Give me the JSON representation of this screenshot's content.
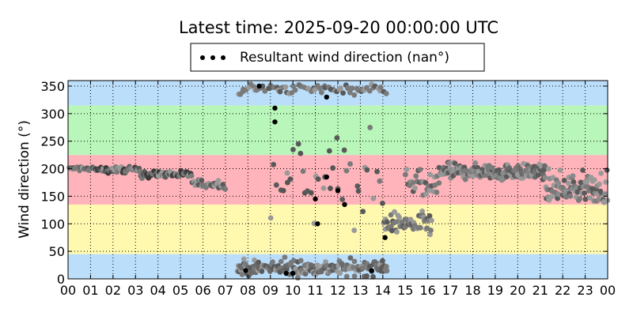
{
  "chart_data": {
    "type": "scatter",
    "title": "Latest time: 2025-09-20 00:00:00 UTC",
    "ylabel": "Wind direction (°)",
    "xlabel": "",
    "xlim": [
      0,
      24
    ],
    "ylim": [
      0,
      360
    ],
    "x_tick_labels": [
      "00",
      "01",
      "02",
      "03",
      "04",
      "05",
      "06",
      "07",
      "08",
      "09",
      "10",
      "11",
      "12",
      "13",
      "14",
      "15",
      "16",
      "17",
      "18",
      "19",
      "20",
      "21",
      "22",
      "23",
      "00"
    ],
    "y_ticks": [
      0,
      50,
      100,
      150,
      200,
      250,
      300,
      350
    ],
    "grid": true,
    "legend": {
      "placement": "top-center",
      "entries": [
        "Resultant wind direction (nan°)"
      ]
    },
    "background_bands": [
      {
        "from": 0,
        "to": 45,
        "color": "#bbdefb"
      },
      {
        "from": 45,
        "to": 135,
        "color": "#fff9b0"
      },
      {
        "from": 135,
        "to": 225,
        "color": "#ffb3ba"
      },
      {
        "from": 225,
        "to": 315,
        "color": "#b9f6b9"
      },
      {
        "from": 315,
        "to": 360,
        "color": "#bbdefb"
      }
    ],
    "series_color": "#808080",
    "point_groups": [
      {
        "x_range": [
          0.0,
          1.2
        ],
        "y_center": 200,
        "y_spread": 6,
        "count": 16,
        "shade": "#5a5a5a"
      },
      {
        "x_range": [
          1.2,
          3.2
        ],
        "y_center": 198,
        "y_spread": 8,
        "count": 55,
        "shade": "#3a3a3a"
      },
      {
        "x_range": [
          3.2,
          5.5
        ],
        "y_center": 190,
        "y_spread": 10,
        "count": 60,
        "shade": "#3a3a3a"
      },
      {
        "x_range": [
          5.5,
          7.0
        ],
        "y_center": 172,
        "y_spread": 12,
        "count": 30,
        "shade": "#6a6a6a"
      },
      {
        "x_range": [
          7.5,
          14.2
        ],
        "y_center": 20,
        "y_spread": 22,
        "count": 170,
        "shade": "#6a6a6a"
      },
      {
        "x_range": [
          7.5,
          14.2
        ],
        "y_center": 345,
        "y_spread": 14,
        "count": 70,
        "shade": "#7a7a7a"
      },
      {
        "x_range": [
          9.0,
          14.0
        ],
        "y_center": 180,
        "y_spread": 110,
        "count": 40,
        "shade": "#555555"
      },
      {
        "x_range": [
          14.0,
          16.2
        ],
        "y_center": 100,
        "y_spread": 30,
        "count": 60,
        "shade": "#7a7a7a"
      },
      {
        "x_range": [
          15.0,
          16.5
        ],
        "y_center": 170,
        "y_spread": 40,
        "count": 30,
        "shade": "#7a7a7a"
      },
      {
        "x_range": [
          16.5,
          19.5
        ],
        "y_center": 195,
        "y_spread": 22,
        "count": 90,
        "shade": "#8a8a8a"
      },
      {
        "x_range": [
          19.5,
          21.2
        ],
        "y_center": 195,
        "y_spread": 20,
        "count": 70,
        "shade": "#6a6a6a"
      },
      {
        "x_range": [
          21.2,
          24.0
        ],
        "y_center": 165,
        "y_spread": 40,
        "count": 90,
        "shade": "#8a8a8a"
      }
    ],
    "black_points": [
      {
        "x": 8.5,
        "y": 350
      },
      {
        "x": 9.2,
        "y": 310
      },
      {
        "x": 9.2,
        "y": 285
      },
      {
        "x": 9.7,
        "y": 10
      },
      {
        "x": 10.0,
        "y": 10
      },
      {
        "x": 11.0,
        "y": 145
      },
      {
        "x": 11.1,
        "y": 100
      },
      {
        "x": 11.5,
        "y": 330
      },
      {
        "x": 11.5,
        "y": 185
      },
      {
        "x": 12.0,
        "y": 160
      },
      {
        "x": 12.3,
        "y": 135
      },
      {
        "x": 13.5,
        "y": 15
      },
      {
        "x": 14.1,
        "y": 75
      },
      {
        "x": 7.9,
        "y": 15
      }
    ]
  }
}
